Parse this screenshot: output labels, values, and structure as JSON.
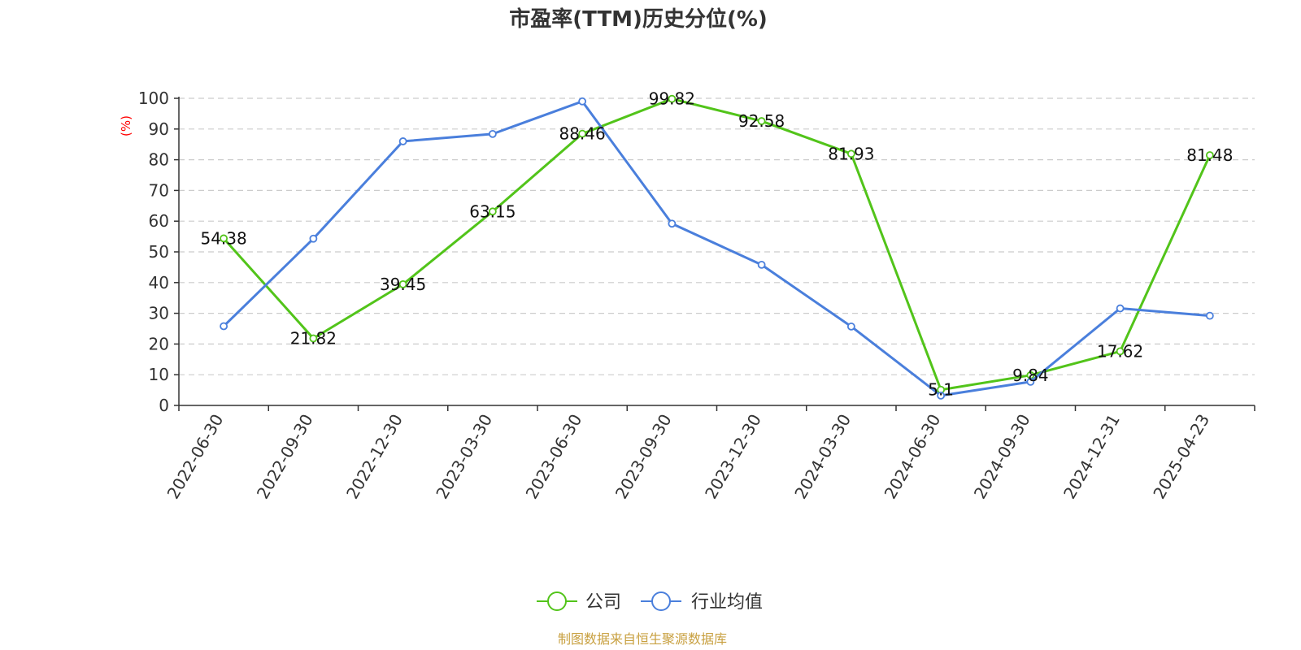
{
  "chart_data": {
    "type": "line",
    "title": "市盈率(TTM)历史分位(%)",
    "xlabel": "",
    "ylabel": "(%)",
    "categories": [
      "2022-06-30",
      "2022-09-30",
      "2022-12-30",
      "2023-03-30",
      "2023-06-30",
      "2023-09-30",
      "2023-12-30",
      "2024-03-30",
      "2024-06-30",
      "2024-09-30",
      "2024-12-31",
      "2025-04-23"
    ],
    "ylim": [
      0,
      100
    ],
    "yticks": [
      0,
      10,
      20,
      30,
      40,
      50,
      60,
      70,
      80,
      90,
      100
    ],
    "grid": true,
    "legend_position": "bottom",
    "series": [
      {
        "name": "公司",
        "color": "#52c41a",
        "values": [
          54.38,
          21.82,
          39.45,
          63.15,
          88.46,
          99.82,
          92.58,
          81.93,
          5.1,
          9.84,
          17.62,
          81.48
        ],
        "labels": [
          "54.38",
          "21.82",
          "39.45",
          "63.15",
          "88.46",
          "99.82",
          "92.58",
          "81.93",
          "5.1",
          "9.84",
          "17.62",
          "81.48"
        ]
      },
      {
        "name": "行业均值",
        "color": "#4a7fdc",
        "values": [
          25.8,
          54.3,
          86.0,
          88.4,
          99.0,
          59.2,
          45.8,
          25.7,
          3.2,
          7.7,
          31.6,
          29.2
        ]
      }
    ],
    "source": "制图数据来自恒生聚源数据库"
  }
}
